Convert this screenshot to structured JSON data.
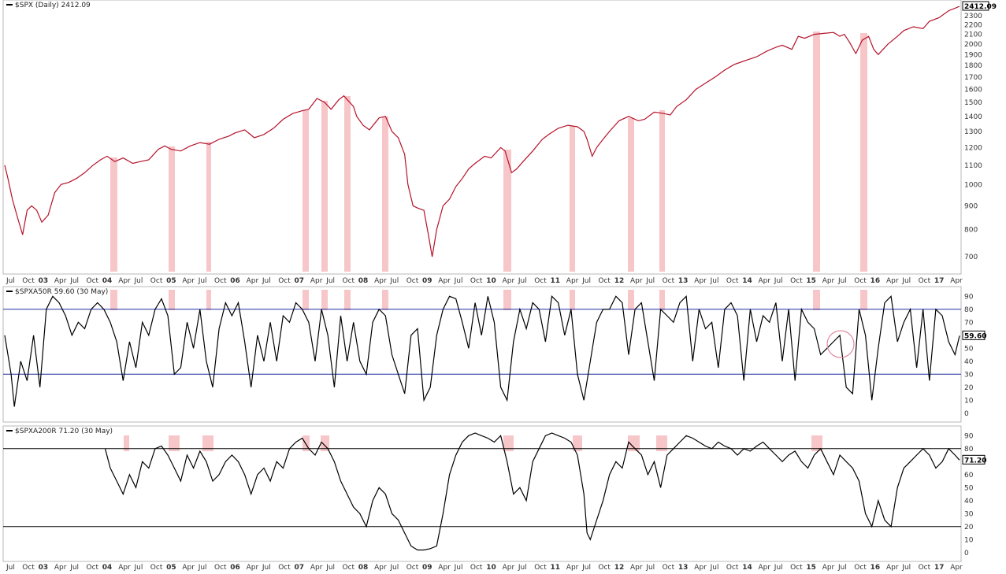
{
  "panels": [
    {
      "id": "spx",
      "title": "$SPX (Daily) 2412.09",
      "last_label": "2412.09",
      "line_color": "#b5122a"
    },
    {
      "id": "a50",
      "title": "$SPXA50R 59.60 (30 May)",
      "last_label": "59.60",
      "line_color": "#000000"
    },
    {
      "id": "a200",
      "title": "$SPXA200R 71.20 (30 May)",
      "last_label": "71.20",
      "line_color": "#000000"
    }
  ],
  "x_axis": {
    "labels": [
      "Jul",
      "Oct",
      "03",
      "Apr",
      "Jul",
      "Oct",
      "04",
      "Apr",
      "Jul",
      "Oct",
      "05",
      "Apr",
      "Jul",
      "Oct",
      "06",
      "Apr",
      "Jul",
      "Oct",
      "07",
      "Apr",
      "Jul",
      "Oct",
      "08",
      "Apr",
      "Jul",
      "Oct",
      "09",
      "Apr",
      "Jul",
      "Oct",
      "10",
      "Apr",
      "Jul",
      "Oct",
      "11",
      "Apr",
      "Jul",
      "Oct",
      "12",
      "Apr",
      "Jul",
      "Oct",
      "13",
      "Apr",
      "Jul",
      "Oct",
      "14",
      "Apr",
      "Jul",
      "Oct",
      "15",
      "Apr",
      "Jul",
      "Oct",
      "16",
      "Apr",
      "Jul",
      "Oct",
      "17",
      "Apr"
    ]
  },
  "colors": {
    "highlight": "#f7c6c8",
    "threshold_a50": "#1f2fa0",
    "threshold_a200": "#000000",
    "circle": "#e08aa0"
  },
  "chart_data": [
    {
      "type": "line",
      "title": "$SPX (Daily) 2412.09",
      "x_range": [
        2002.5,
        2017.42
      ],
      "ylim": [
        650,
        2450
      ],
      "log_scale": true,
      "yticks": [
        700,
        800,
        900,
        1000,
        1100,
        1200,
        1300,
        1400,
        1500,
        1600,
        1700,
        1800,
        1900,
        2000,
        2100,
        2200,
        2300
      ],
      "last_value": 2412.09,
      "series": [
        {
          "x": [
            2002.5,
            2002.55,
            2002.62,
            2002.7,
            2002.78,
            2002.85,
            2002.92,
            2003.0,
            2003.08,
            2003.18,
            2003.28,
            2003.38,
            2003.5,
            2003.62,
            2003.75,
            2003.88,
            2004.0,
            2004.1,
            2004.22,
            2004.35,
            2004.5,
            2004.62,
            2004.75,
            2004.9,
            2005.0,
            2005.1,
            2005.25,
            2005.4,
            2005.55,
            2005.7,
            2005.85,
            2006.0,
            2006.1,
            2006.25,
            2006.4,
            2006.55,
            2006.7,
            2006.85,
            2007.0,
            2007.15,
            2007.25,
            2007.38,
            2007.5,
            2007.6,
            2007.72,
            2007.8,
            2007.95,
            2008.0,
            2008.1,
            2008.2,
            2008.35,
            2008.45,
            2008.55,
            2008.65,
            2008.75,
            2008.8,
            2008.88,
            2008.95,
            2009.05,
            2009.12,
            2009.18,
            2009.25,
            2009.35,
            2009.45,
            2009.55,
            2009.65,
            2009.75,
            2009.85,
            2010.0,
            2010.1,
            2010.25,
            2010.32,
            2010.42,
            2010.5,
            2010.6,
            2010.75,
            2010.9,
            2011.0,
            2011.15,
            2011.3,
            2011.45,
            2011.55,
            2011.6,
            2011.68,
            2011.75,
            2011.85,
            2011.95,
            2012.1,
            2012.25,
            2012.4,
            2012.5,
            2012.65,
            2012.8,
            2012.9,
            2013.0,
            2013.15,
            2013.3,
            2013.45,
            2013.6,
            2013.75,
            2013.9,
            2014.0,
            2014.1,
            2014.25,
            2014.4,
            2014.55,
            2014.65,
            2014.8,
            2014.9,
            2015.0,
            2015.15,
            2015.3,
            2015.45,
            2015.55,
            2015.62,
            2015.7,
            2015.8,
            2015.9,
            2016.0,
            2016.08,
            2016.15,
            2016.3,
            2016.45,
            2016.55,
            2016.7,
            2016.85,
            2016.95,
            2017.1,
            2017.25,
            2017.35,
            2017.42
          ],
          "y": [
            1100,
            1030,
            930,
            850,
            780,
            880,
            900,
            880,
            830,
            860,
            960,
            1000,
            1010,
            1030,
            1060,
            1100,
            1130,
            1150,
            1120,
            1140,
            1110,
            1120,
            1130,
            1190,
            1210,
            1190,
            1180,
            1210,
            1230,
            1220,
            1250,
            1270,
            1290,
            1310,
            1260,
            1280,
            1320,
            1380,
            1420,
            1440,
            1450,
            1530,
            1500,
            1450,
            1520,
            1550,
            1470,
            1400,
            1340,
            1310,
            1390,
            1400,
            1300,
            1260,
            1160,
            1000,
            900,
            890,
            880,
            780,
            700,
            800,
            900,
            930,
            990,
            1030,
            1080,
            1110,
            1150,
            1140,
            1200,
            1180,
            1060,
            1080,
            1120,
            1180,
            1250,
            1280,
            1320,
            1340,
            1330,
            1300,
            1250,
            1150,
            1200,
            1250,
            1300,
            1370,
            1400,
            1370,
            1380,
            1430,
            1420,
            1410,
            1470,
            1520,
            1600,
            1650,
            1700,
            1760,
            1810,
            1830,
            1850,
            1880,
            1930,
            1970,
            1990,
            1950,
            2080,
            2060,
            2100,
            2110,
            2120,
            2080,
            2100,
            2020,
            1910,
            2040,
            2080,
            1950,
            1900,
            2000,
            2080,
            2140,
            2180,
            2160,
            2240,
            2280,
            2360,
            2390,
            2412
          ]
        }
      ]
    },
    {
      "type": "line",
      "title": "$SPXA50R 59.60 (30 May)",
      "x_range": [
        2002.5,
        2017.42
      ],
      "ylim": [
        -5,
        95
      ],
      "yticks": [
        0,
        10,
        20,
        30,
        40,
        50,
        60,
        70,
        80,
        90
      ],
      "thresholds": [
        80,
        30
      ],
      "last_value": 59.6,
      "series": [
        {
          "x": [
            2002.5,
            2002.6,
            2002.65,
            2002.75,
            2002.85,
            2002.95,
            2003.05,
            2003.15,
            2003.25,
            2003.35,
            2003.45,
            2003.55,
            2003.65,
            2003.75,
            2003.85,
            2003.95,
            2004.05,
            2004.15,
            2004.25,
            2004.35,
            2004.45,
            2004.55,
            2004.65,
            2004.75,
            2004.85,
            2004.95,
            2005.05,
            2005.15,
            2005.25,
            2005.35,
            2005.45,
            2005.55,
            2005.65,
            2005.75,
            2005.85,
            2005.95,
            2006.05,
            2006.15,
            2006.25,
            2006.35,
            2006.45,
            2006.55,
            2006.65,
            2006.75,
            2006.85,
            2006.95,
            2007.05,
            2007.15,
            2007.25,
            2007.35,
            2007.45,
            2007.55,
            2007.65,
            2007.75,
            2007.85,
            2007.95,
            2008.05,
            2008.15,
            2008.25,
            2008.35,
            2008.45,
            2008.55,
            2008.65,
            2008.75,
            2008.85,
            2008.95,
            2009.05,
            2009.15,
            2009.25,
            2009.35,
            2009.45,
            2009.55,
            2009.65,
            2009.75,
            2009.85,
            2009.95,
            2010.05,
            2010.15,
            2010.25,
            2010.35,
            2010.45,
            2010.55,
            2010.65,
            2010.75,
            2010.85,
            2010.95,
            2011.05,
            2011.15,
            2011.25,
            2011.35,
            2011.45,
            2011.55,
            2011.65,
            2011.75,
            2011.85,
            2011.95,
            2012.05,
            2012.15,
            2012.25,
            2012.35,
            2012.45,
            2012.55,
            2012.65,
            2012.75,
            2012.85,
            2012.95,
            2013.05,
            2013.15,
            2013.25,
            2013.35,
            2013.45,
            2013.55,
            2013.65,
            2013.75,
            2013.85,
            2013.95,
            2014.05,
            2014.15,
            2014.25,
            2014.35,
            2014.45,
            2014.55,
            2014.65,
            2014.75,
            2014.85,
            2014.95,
            2015.05,
            2015.15,
            2015.25,
            2015.35,
            2015.45,
            2015.55,
            2015.65,
            2015.75,
            2015.85,
            2015.95,
            2016.05,
            2016.15,
            2016.25,
            2016.35,
            2016.45,
            2016.55,
            2016.65,
            2016.75,
            2016.85,
            2016.95,
            2017.05,
            2017.15,
            2017.25,
            2017.35,
            2017.42
          ],
          "y": [
            60,
            30,
            5,
            40,
            25,
            60,
            20,
            80,
            90,
            85,
            75,
            60,
            70,
            65,
            80,
            85,
            80,
            70,
            55,
            25,
            55,
            35,
            70,
            60,
            80,
            88,
            75,
            30,
            35,
            70,
            50,
            80,
            40,
            20,
            65,
            85,
            75,
            85,
            55,
            20,
            60,
            40,
            70,
            40,
            75,
            70,
            85,
            80,
            70,
            40,
            80,
            60,
            20,
            75,
            40,
            70,
            40,
            30,
            70,
            80,
            75,
            45,
            30,
            15,
            60,
            65,
            10,
            20,
            60,
            80,
            90,
            88,
            70,
            50,
            85,
            60,
            90,
            70,
            20,
            10,
            55,
            80,
            65,
            85,
            80,
            55,
            90,
            85,
            60,
            80,
            30,
            10,
            40,
            70,
            80,
            80,
            90,
            85,
            45,
            80,
            85,
            55,
            25,
            80,
            75,
            70,
            85,
            90,
            40,
            80,
            65,
            70,
            35,
            80,
            85,
            75,
            25,
            80,
            55,
            75,
            70,
            85,
            40,
            80,
            25,
            80,
            70,
            65,
            45,
            50,
            55,
            60,
            20,
            15,
            80,
            60,
            10,
            50,
            85,
            90,
            55,
            70,
            80,
            35,
            80,
            25,
            80,
            75,
            55,
            45,
            59.6
          ]
        }
      ]
    },
    {
      "type": "line",
      "title": "$SPXA200R 71.20 (30 May)",
      "x_range": [
        2002.5,
        2017.42
      ],
      "ylim": [
        -5,
        95
      ],
      "yticks": [
        0,
        10,
        20,
        30,
        40,
        50,
        60,
        70,
        80,
        90
      ],
      "thresholds": [
        80,
        20
      ],
      "last_value": 71.2,
      "series": [
        {
          "x": [
            2004.07,
            2004.15,
            2004.25,
            2004.35,
            2004.45,
            2004.55,
            2004.65,
            2004.75,
            2004.85,
            2004.95,
            2005.05,
            2005.15,
            2005.25,
            2005.35,
            2005.45,
            2005.55,
            2005.65,
            2005.75,
            2005.85,
            2005.95,
            2006.05,
            2006.15,
            2006.25,
            2006.35,
            2006.45,
            2006.55,
            2006.65,
            2006.75,
            2006.85,
            2006.95,
            2007.05,
            2007.15,
            2007.25,
            2007.35,
            2007.45,
            2007.55,
            2007.65,
            2007.75,
            2007.85,
            2007.95,
            2008.05,
            2008.15,
            2008.25,
            2008.35,
            2008.45,
            2008.55,
            2008.65,
            2008.75,
            2008.85,
            2008.95,
            2009.05,
            2009.15,
            2009.25,
            2009.35,
            2009.45,
            2009.55,
            2009.65,
            2009.75,
            2009.85,
            2009.95,
            2010.05,
            2010.15,
            2010.25,
            2010.35,
            2010.45,
            2010.55,
            2010.65,
            2010.75,
            2010.85,
            2010.95,
            2011.05,
            2011.15,
            2011.25,
            2011.35,
            2011.45,
            2011.55,
            2011.6,
            2011.65,
            2011.75,
            2011.85,
            2011.95,
            2012.05,
            2012.15,
            2012.25,
            2012.35,
            2012.45,
            2012.55,
            2012.65,
            2012.75,
            2012.85,
            2012.95,
            2013.05,
            2013.15,
            2013.25,
            2013.35,
            2013.45,
            2013.55,
            2013.65,
            2013.75,
            2013.85,
            2013.95,
            2014.05,
            2014.15,
            2014.25,
            2014.35,
            2014.45,
            2014.55,
            2014.65,
            2014.75,
            2014.85,
            2014.95,
            2015.05,
            2015.15,
            2015.25,
            2015.35,
            2015.45,
            2015.55,
            2015.65,
            2015.75,
            2015.85,
            2015.95,
            2016.05,
            2016.15,
            2016.25,
            2016.35,
            2016.45,
            2016.55,
            2016.65,
            2016.75,
            2016.85,
            2016.95,
            2017.05,
            2017.15,
            2017.25,
            2017.35,
            2017.42
          ],
          "y": [
            80,
            65,
            55,
            45,
            60,
            50,
            70,
            65,
            80,
            82,
            75,
            65,
            55,
            75,
            65,
            78,
            70,
            55,
            60,
            70,
            75,
            70,
            60,
            45,
            60,
            65,
            55,
            70,
            65,
            80,
            85,
            88,
            80,
            75,
            85,
            80,
            70,
            55,
            45,
            35,
            30,
            20,
            40,
            50,
            45,
            30,
            25,
            15,
            5,
            2,
            2,
            3,
            5,
            30,
            60,
            75,
            85,
            90,
            92,
            90,
            88,
            85,
            90,
            70,
            45,
            50,
            40,
            70,
            80,
            90,
            92,
            90,
            88,
            85,
            75,
            45,
            15,
            10,
            25,
            40,
            60,
            70,
            65,
            85,
            80,
            75,
            60,
            70,
            50,
            75,
            80,
            85,
            90,
            88,
            85,
            82,
            80,
            85,
            82,
            80,
            75,
            80,
            78,
            82,
            85,
            80,
            75,
            70,
            75,
            78,
            70,
            65,
            75,
            80,
            70,
            60,
            75,
            70,
            65,
            55,
            30,
            20,
            40,
            25,
            20,
            50,
            65,
            70,
            75,
            80,
            75,
            65,
            70,
            80,
            75,
            71.2
          ]
        }
      ]
    }
  ]
}
